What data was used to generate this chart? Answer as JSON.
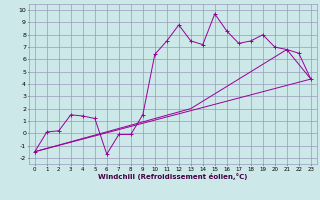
{
  "xlabel": "Windchill (Refroidissement éolien,°C)",
  "bg_color": "#cce8e8",
  "grid_color": "#9999bb",
  "line_color": "#990099",
  "xlim": [
    -0.5,
    23.5
  ],
  "ylim": [
    -2.5,
    10.5
  ],
  "xticks": [
    0,
    1,
    2,
    3,
    4,
    5,
    6,
    7,
    8,
    9,
    10,
    11,
    12,
    13,
    14,
    15,
    16,
    17,
    18,
    19,
    20,
    21,
    22,
    23
  ],
  "yticks": [
    -2,
    -1,
    0,
    1,
    2,
    3,
    4,
    5,
    6,
    7,
    8,
    9,
    10
  ],
  "series1_x": [
    0,
    1,
    2,
    3,
    4,
    5,
    6,
    7,
    8,
    9,
    10,
    11,
    12,
    13,
    14,
    15,
    16,
    17,
    18,
    19,
    20,
    21,
    22,
    23
  ],
  "series1_y": [
    -1.5,
    0.1,
    0.2,
    1.5,
    1.4,
    1.2,
    -1.7,
    -0.1,
    -0.1,
    1.5,
    6.4,
    7.5,
    8.8,
    7.5,
    7.2,
    9.7,
    8.3,
    7.3,
    7.5,
    8.0,
    7.0,
    6.8,
    6.5,
    4.4
  ],
  "series2_x": [
    0,
    23
  ],
  "series2_y": [
    -1.5,
    4.4
  ],
  "series3_x": [
    0,
    13,
    21,
    23
  ],
  "series3_y": [
    -1.5,
    2.0,
    6.8,
    4.4
  ]
}
